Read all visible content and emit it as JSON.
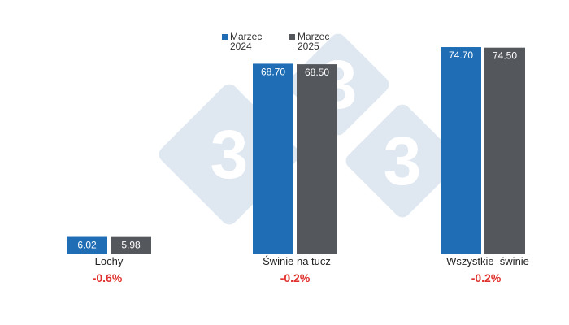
{
  "chart_data": {
    "type": "bar",
    "categories": [
      "Lochy",
      "Świnie na tucz",
      "Wszystkie  świnie"
    ],
    "series": [
      {
        "name": "Marzec 2024",
        "values": [
          6.02,
          68.7,
          74.7
        ],
        "labels": [
          "6.02",
          "68.70",
          "74.70"
        ],
        "color": "#1f6eb5"
      },
      {
        "name": "Marzec 2025",
        "values": [
          5.98,
          68.5,
          74.5
        ],
        "labels": [
          "5.98",
          "68.50",
          "74.50"
        ],
        "color": "#54575c"
      }
    ],
    "changes": [
      "-0.6%",
      "-0.2%",
      "-0.2%"
    ],
    "change_color": "#e0312e",
    "ylim": [
      0,
      80
    ],
    "legend_position": "top-center",
    "legend": [
      {
        "line1": "Marzec",
        "line2": "2024"
      },
      {
        "line1": "Marzec",
        "line2": "2025"
      }
    ],
    "watermark_digit": "3"
  }
}
